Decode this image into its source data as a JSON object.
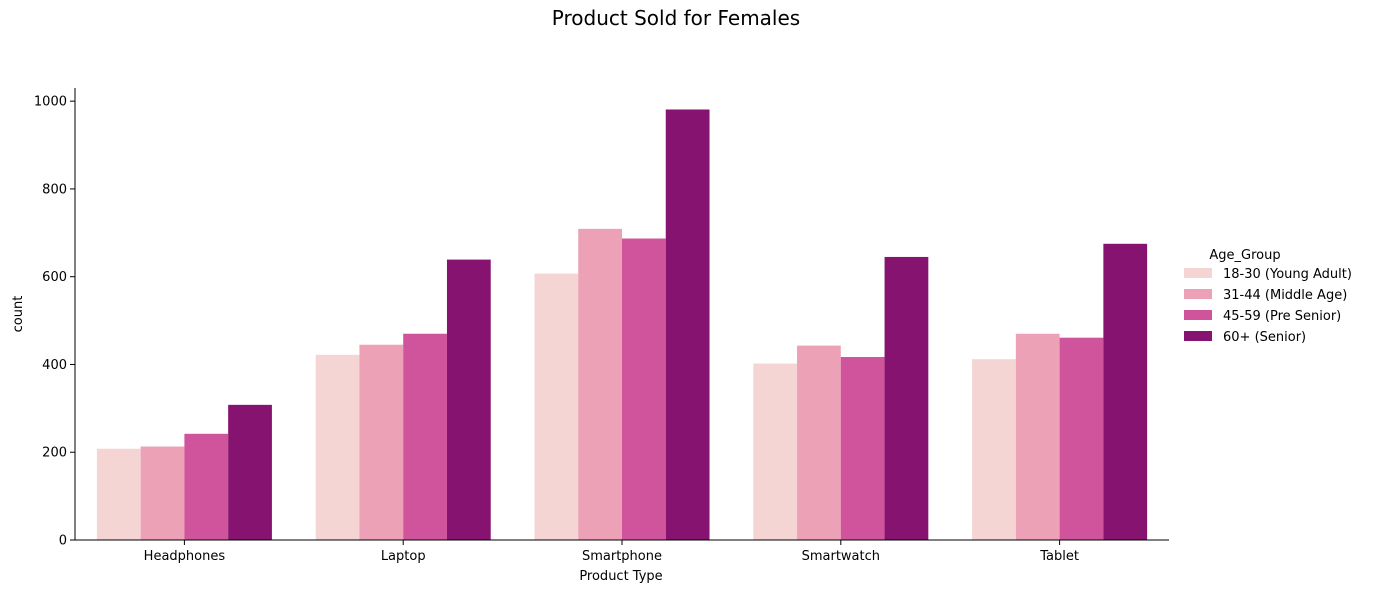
{
  "chart_data": {
    "type": "bar",
    "title": "Product Sold for Females",
    "xlabel": "Product Type",
    "ylabel": "count",
    "categories": [
      "Headphones",
      "Laptop",
      "Smartphone",
      "Smartwatch",
      "Tablet"
    ],
    "ylim": [
      0,
      1030
    ],
    "yticks": [
      0,
      200,
      400,
      600,
      800,
      1000
    ],
    "grid": false,
    "legend": {
      "title": "Age_Group",
      "placement": "right"
    },
    "series": [
      {
        "name": "18-30 (Young Adult)",
        "color": "#f5d5d4",
        "values": [
          208,
          422,
          607,
          402,
          412
        ]
      },
      {
        "name": "31-44 (Middle Age)",
        "color": "#eca1b6",
        "values": [
          213,
          445,
          709,
          443,
          470
        ]
      },
      {
        "name": "45-59 (Pre Senior)",
        "color": "#d0549b",
        "values": [
          242,
          470,
          687,
          417,
          461
        ]
      },
      {
        "name": "60+ (Senior)",
        "color": "#86136f",
        "values": [
          308,
          639,
          981,
          645,
          675
        ]
      }
    ]
  }
}
